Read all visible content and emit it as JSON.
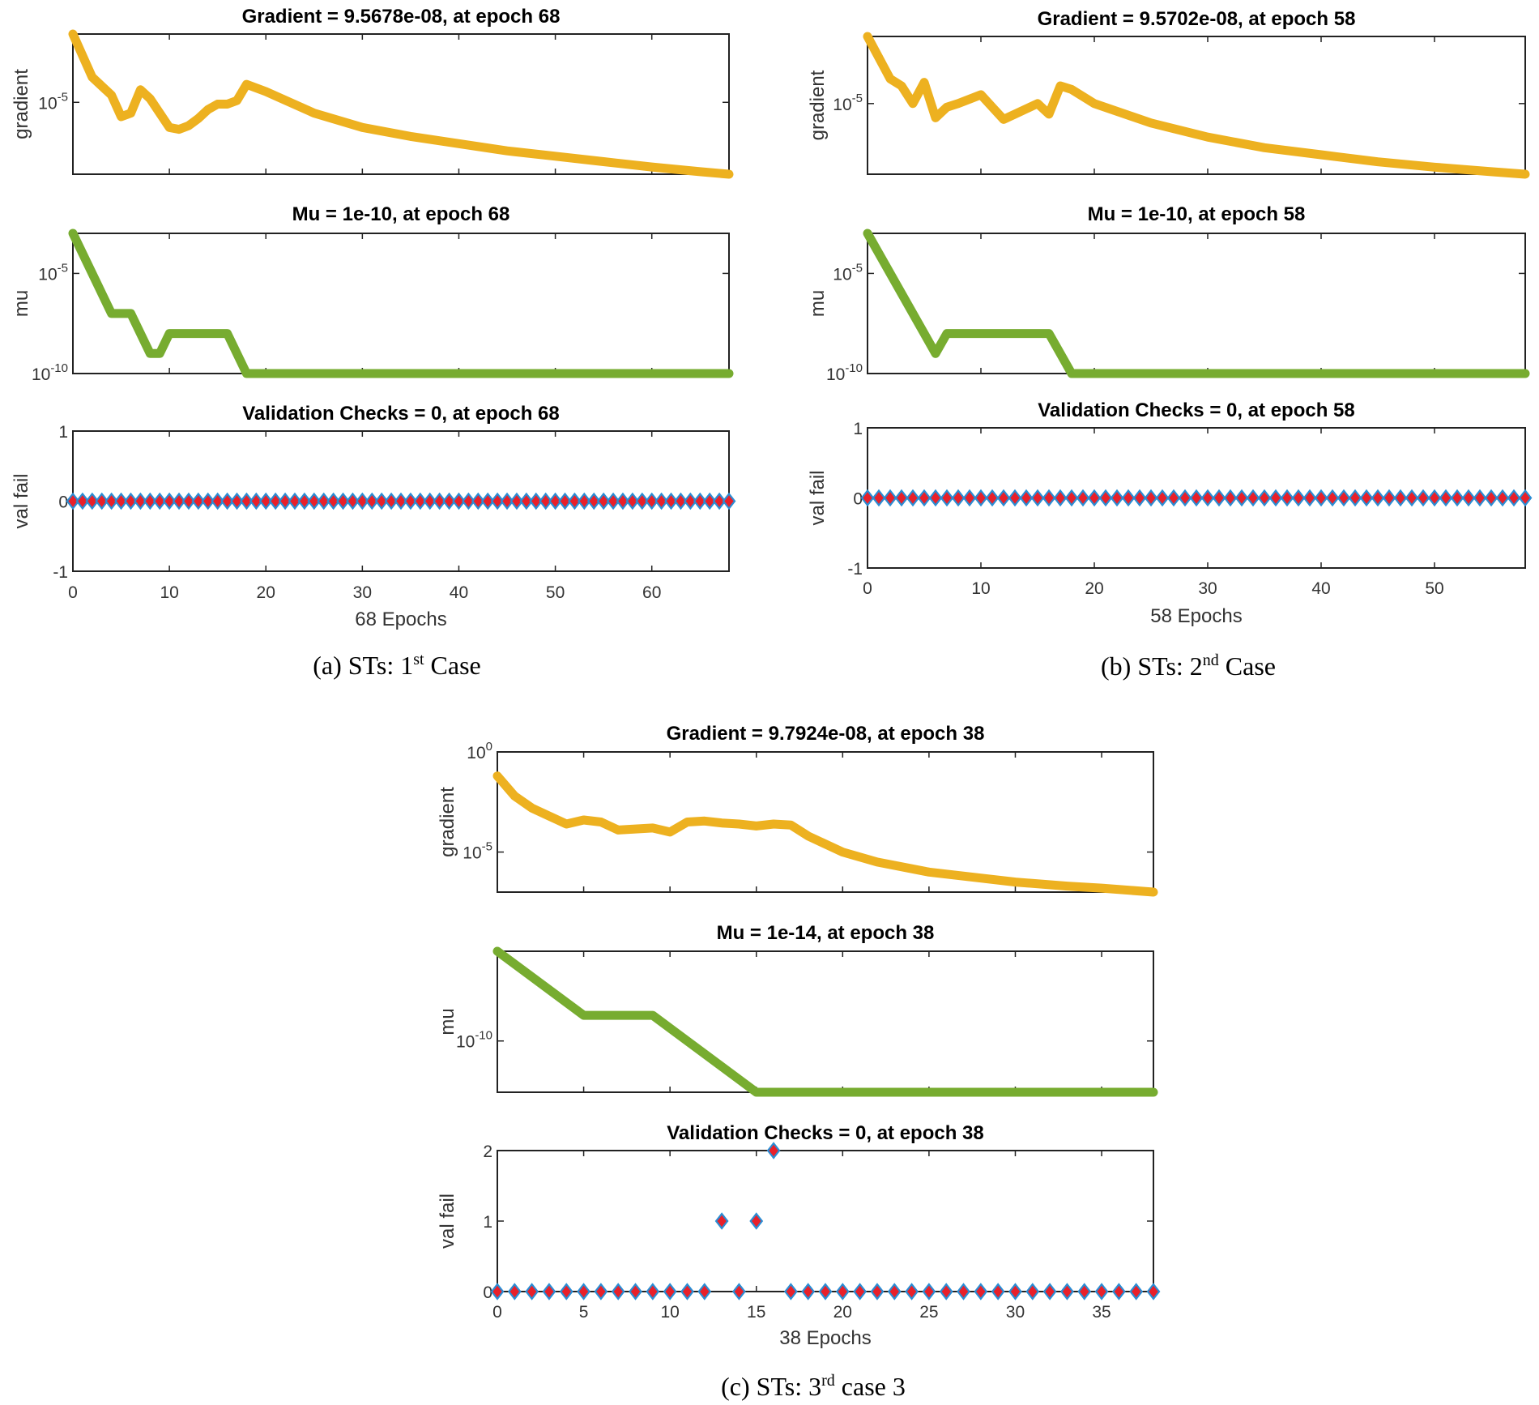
{
  "colors": {
    "gradient": "#EDB120",
    "mu": "#77AC30",
    "marker_fill": "#E8202A",
    "marker_edge": "#2A8DD4"
  },
  "chart_data": [
    {
      "id": "a",
      "type": "line",
      "caption": {
        "pre": "(a) STs: 1",
        "sup": "st",
        "post": " Case"
      },
      "xlabel": "68 Epochs",
      "xlim": [
        0,
        68
      ],
      "xticks": [
        "0",
        "10",
        "20",
        "30",
        "40",
        "50",
        "60"
      ],
      "gradient": {
        "title": "Gradient = 9.5678e-08, at epoch 68",
        "ylabel": "gradient",
        "yscale": "log",
        "ylim_exp": [
          -7.0,
          -3.1
        ],
        "yticks": [
          {
            "base": "10",
            "exp": "-5",
            "value_exp": -5
          }
        ],
        "x": [
          0,
          2,
          4,
          5,
          6,
          7,
          8,
          9,
          10,
          11,
          12,
          13,
          14,
          15,
          16,
          17,
          18,
          20,
          25,
          30,
          35,
          40,
          45,
          50,
          55,
          60,
          65,
          68
        ],
        "log10_y": [
          -3.1,
          -4.3,
          -4.8,
          -5.4,
          -5.3,
          -4.65,
          -4.9,
          -5.3,
          -5.7,
          -5.75,
          -5.65,
          -5.45,
          -5.2,
          -5.05,
          -5.05,
          -4.95,
          -4.5,
          -4.7,
          -5.3,
          -5.7,
          -5.95,
          -6.15,
          -6.35,
          -6.5,
          -6.65,
          -6.8,
          -6.93,
          -7.0
        ]
      },
      "mu": {
        "title": "Mu = 1e-10, at epoch 68",
        "ylabel": "mu",
        "yscale": "log",
        "ylim_exp": [
          -10.0,
          -3.0
        ],
        "yticks": [
          {
            "base": "10",
            "exp": "-5",
            "value_exp": -5
          },
          {
            "base": "10",
            "exp": "-10",
            "value_exp": -10
          }
        ],
        "x": [
          0,
          4,
          6,
          8,
          9,
          10,
          16,
          18,
          68
        ],
        "log10_y": [
          -3.0,
          -7.0,
          -7.0,
          -9.0,
          -9.0,
          -8.0,
          -8.0,
          -10.0,
          -10.0
        ]
      },
      "val": {
        "title": "Validation Checks = 0, at epoch 68",
        "ylabel": "val fail",
        "ylim": [
          -1,
          1
        ],
        "yticks": [
          "-1",
          "0",
          "1"
        ],
        "x": [
          0,
          1,
          2,
          3,
          4,
          5,
          6,
          7,
          8,
          9,
          10,
          11,
          12,
          13,
          14,
          15,
          16,
          17,
          18,
          19,
          20,
          21,
          22,
          23,
          24,
          25,
          26,
          27,
          28,
          29,
          30,
          31,
          32,
          33,
          34,
          35,
          36,
          37,
          38,
          39,
          40,
          41,
          42,
          43,
          44,
          45,
          46,
          47,
          48,
          49,
          50,
          51,
          52,
          53,
          54,
          55,
          56,
          57,
          58,
          59,
          60,
          61,
          62,
          63,
          64,
          65,
          66,
          67,
          68
        ],
        "y": [
          0,
          0,
          0,
          0,
          0,
          0,
          0,
          0,
          0,
          0,
          0,
          0,
          0,
          0,
          0,
          0,
          0,
          0,
          0,
          0,
          0,
          0,
          0,
          0,
          0,
          0,
          0,
          0,
          0,
          0,
          0,
          0,
          0,
          0,
          0,
          0,
          0,
          0,
          0,
          0,
          0,
          0,
          0,
          0,
          0,
          0,
          0,
          0,
          0,
          0,
          0,
          0,
          0,
          0,
          0,
          0,
          0,
          0,
          0,
          0,
          0,
          0,
          0,
          0,
          0,
          0,
          0,
          0,
          0
        ]
      }
    },
    {
      "id": "b",
      "type": "line",
      "caption": {
        "pre": "(b) STs: 2",
        "sup": "nd",
        "post": " Case"
      },
      "xlabel": "58 Epochs",
      "xlim": [
        0,
        58
      ],
      "xticks": [
        "0",
        "10",
        "20",
        "30",
        "40",
        "50"
      ],
      "gradient": {
        "title": "Gradient = 9.5702e-08, at epoch 58",
        "ylabel": "gradient",
        "yscale": "log",
        "ylim_exp": [
          -7.0,
          -3.1
        ],
        "yticks": [
          {
            "base": "10",
            "exp": "-5",
            "value_exp": -5
          }
        ],
        "x": [
          0,
          2,
          3,
          4,
          5,
          6,
          7,
          8,
          10,
          11,
          12,
          13,
          15,
          16,
          17,
          18,
          20,
          25,
          30,
          35,
          40,
          45,
          50,
          55,
          58
        ],
        "log10_y": [
          -3.1,
          -4.3,
          -4.5,
          -5.0,
          -4.4,
          -5.4,
          -5.1,
          -5.0,
          -4.75,
          -5.1,
          -5.45,
          -5.3,
          -5.0,
          -5.3,
          -4.5,
          -4.6,
          -5.0,
          -5.55,
          -5.95,
          -6.25,
          -6.45,
          -6.65,
          -6.8,
          -6.93,
          -7.0
        ]
      },
      "mu": {
        "title": "Mu = 1e-10, at epoch 58",
        "ylabel": "mu",
        "yscale": "log",
        "ylim_exp": [
          -10.0,
          -3.0
        ],
        "yticks": [
          {
            "base": "10",
            "exp": "-5",
            "value_exp": -5
          },
          {
            "base": "10",
            "exp": "-10",
            "value_exp": -10
          }
        ],
        "x": [
          0,
          6,
          7,
          16,
          18,
          58
        ],
        "log10_y": [
          -3.0,
          -9.0,
          -8.0,
          -8.0,
          -10.0,
          -10.0
        ]
      },
      "val": {
        "title": "Validation Checks = 0, at epoch 58",
        "ylabel": "val fail",
        "ylim": [
          -1,
          1
        ],
        "yticks": [
          "-1",
          "0",
          "1"
        ],
        "x": [
          0,
          1,
          2,
          3,
          4,
          5,
          6,
          7,
          8,
          9,
          10,
          11,
          12,
          13,
          14,
          15,
          16,
          17,
          18,
          19,
          20,
          21,
          22,
          23,
          24,
          25,
          26,
          27,
          28,
          29,
          30,
          31,
          32,
          33,
          34,
          35,
          36,
          37,
          38,
          39,
          40,
          41,
          42,
          43,
          44,
          45,
          46,
          47,
          48,
          49,
          50,
          51,
          52,
          53,
          54,
          55,
          56,
          57,
          58
        ],
        "y": [
          0,
          0,
          0,
          0,
          0,
          0,
          0,
          0,
          0,
          0,
          0,
          0,
          0,
          0,
          0,
          0,
          0,
          0,
          0,
          0,
          0,
          0,
          0,
          0,
          0,
          0,
          0,
          0,
          0,
          0,
          0,
          0,
          0,
          0,
          0,
          0,
          0,
          0,
          0,
          0,
          0,
          0,
          0,
          0,
          0,
          0,
          0,
          0,
          0,
          0,
          0,
          0,
          0,
          0,
          0,
          0,
          0,
          0,
          0
        ]
      }
    },
    {
      "id": "c",
      "type": "line",
      "caption": {
        "pre": "(c) STs: 3",
        "sup": "rd",
        "post": " case 3"
      },
      "xlabel": "38 Epochs",
      "xlim": [
        0,
        38
      ],
      "xticks": [
        "0",
        "5",
        "10",
        "15",
        "20",
        "25",
        "30",
        "35"
      ],
      "gradient": {
        "title": "Gradient = 9.7924e-08, at epoch 38",
        "ylabel": "gradient",
        "yscale": "log",
        "ylim_exp": [
          -7.0,
          0.0
        ],
        "yticks": [
          {
            "base": "10",
            "exp": "0",
            "value_exp": 0
          },
          {
            "base": "10",
            "exp": "-5",
            "value_exp": -5
          }
        ],
        "x": [
          0,
          1,
          2,
          3,
          4,
          5,
          6,
          7,
          8,
          9,
          10,
          11,
          12,
          13,
          14,
          15,
          16,
          17,
          18,
          20,
          22,
          25,
          28,
          30,
          33,
          35,
          38
        ],
        "log10_y": [
          -1.2,
          -2.2,
          -2.8,
          -3.2,
          -3.6,
          -3.4,
          -3.5,
          -3.9,
          -3.85,
          -3.8,
          -4.0,
          -3.5,
          -3.45,
          -3.55,
          -3.6,
          -3.7,
          -3.6,
          -3.65,
          -4.2,
          -5.0,
          -5.5,
          -6.0,
          -6.3,
          -6.5,
          -6.7,
          -6.8,
          -7.0
        ]
      },
      "mu": {
        "title": "Mu = 1e-14, at epoch 38",
        "ylabel": "mu",
        "yscale": "log",
        "ylim_exp": [
          -14.0,
          -3.0
        ],
        "yticks": [
          {
            "base": "10",
            "exp": "-10",
            "value_exp": -10
          }
        ],
        "x": [
          0,
          5,
          9,
          15,
          38
        ],
        "log10_y": [
          -3.0,
          -8.0,
          -8.0,
          -14.0,
          -14.0
        ]
      },
      "val": {
        "title": "Validation Checks = 0, at epoch 38",
        "ylabel": "val fail",
        "ylim": [
          0,
          2
        ],
        "yticks": [
          "0",
          "1",
          "2"
        ],
        "x": [
          0,
          1,
          2,
          3,
          4,
          5,
          6,
          7,
          8,
          9,
          10,
          11,
          12,
          13,
          14,
          15,
          16,
          17,
          18,
          19,
          20,
          21,
          22,
          23,
          24,
          25,
          26,
          27,
          28,
          29,
          30,
          31,
          32,
          33,
          34,
          35,
          36,
          37,
          38
        ],
        "y": [
          0,
          0,
          0,
          0,
          0,
          0,
          0,
          0,
          0,
          0,
          0,
          0,
          0,
          1,
          0,
          1,
          2,
          0,
          0,
          0,
          0,
          0,
          0,
          0,
          0,
          0,
          0,
          0,
          0,
          0,
          0,
          0,
          0,
          0,
          0,
          0,
          0,
          0,
          0
        ]
      }
    }
  ]
}
